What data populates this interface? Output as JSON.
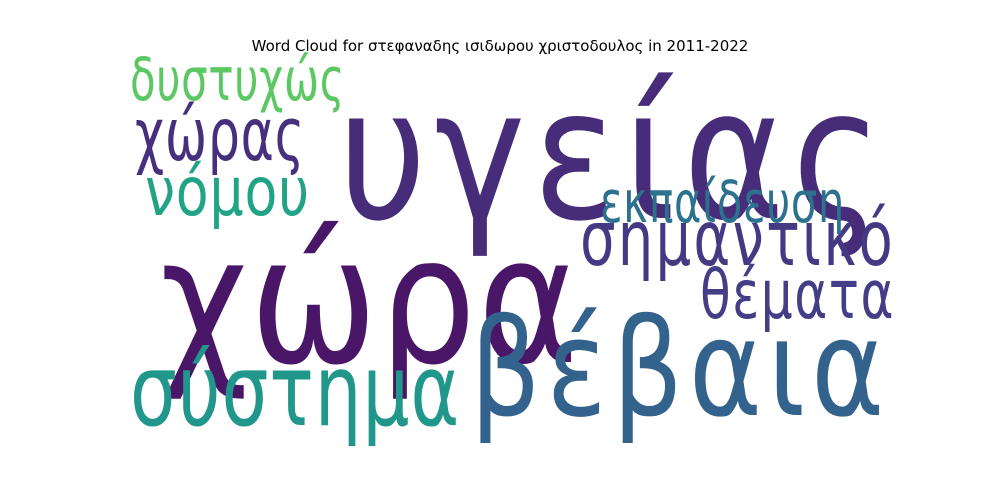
{
  "chart_data": {
    "type": "wordcloud",
    "title": "Word Cloud for στεφαναδης ισιδωρου χριστοδουλος in 2011-2022",
    "words": [
      {
        "text": "υγείας",
        "weight": 1.0,
        "color": "#472c7a"
      },
      {
        "text": "χώρα",
        "weight": 0.97,
        "color": "#4a1668"
      },
      {
        "text": "βέβαια",
        "weight": 0.74,
        "color": "#33628d"
      },
      {
        "text": "σύστημα",
        "weight": 0.55,
        "color": "#21968b"
      },
      {
        "text": "σημαντικό",
        "weight": 0.42,
        "color": "#443a83"
      },
      {
        "text": "χώρας",
        "weight": 0.4,
        "color": "#46307e"
      },
      {
        "text": "θέματα",
        "weight": 0.37,
        "color": "#433e85"
      },
      {
        "text": "νόμου",
        "weight": 0.37,
        "color": "#23a386"
      },
      {
        "text": "δυστυχώς",
        "weight": 0.33,
        "color": "#5cc863"
      },
      {
        "text": "εκπαίδευση",
        "weight": 0.32,
        "color": "#2c718e"
      }
    ]
  }
}
